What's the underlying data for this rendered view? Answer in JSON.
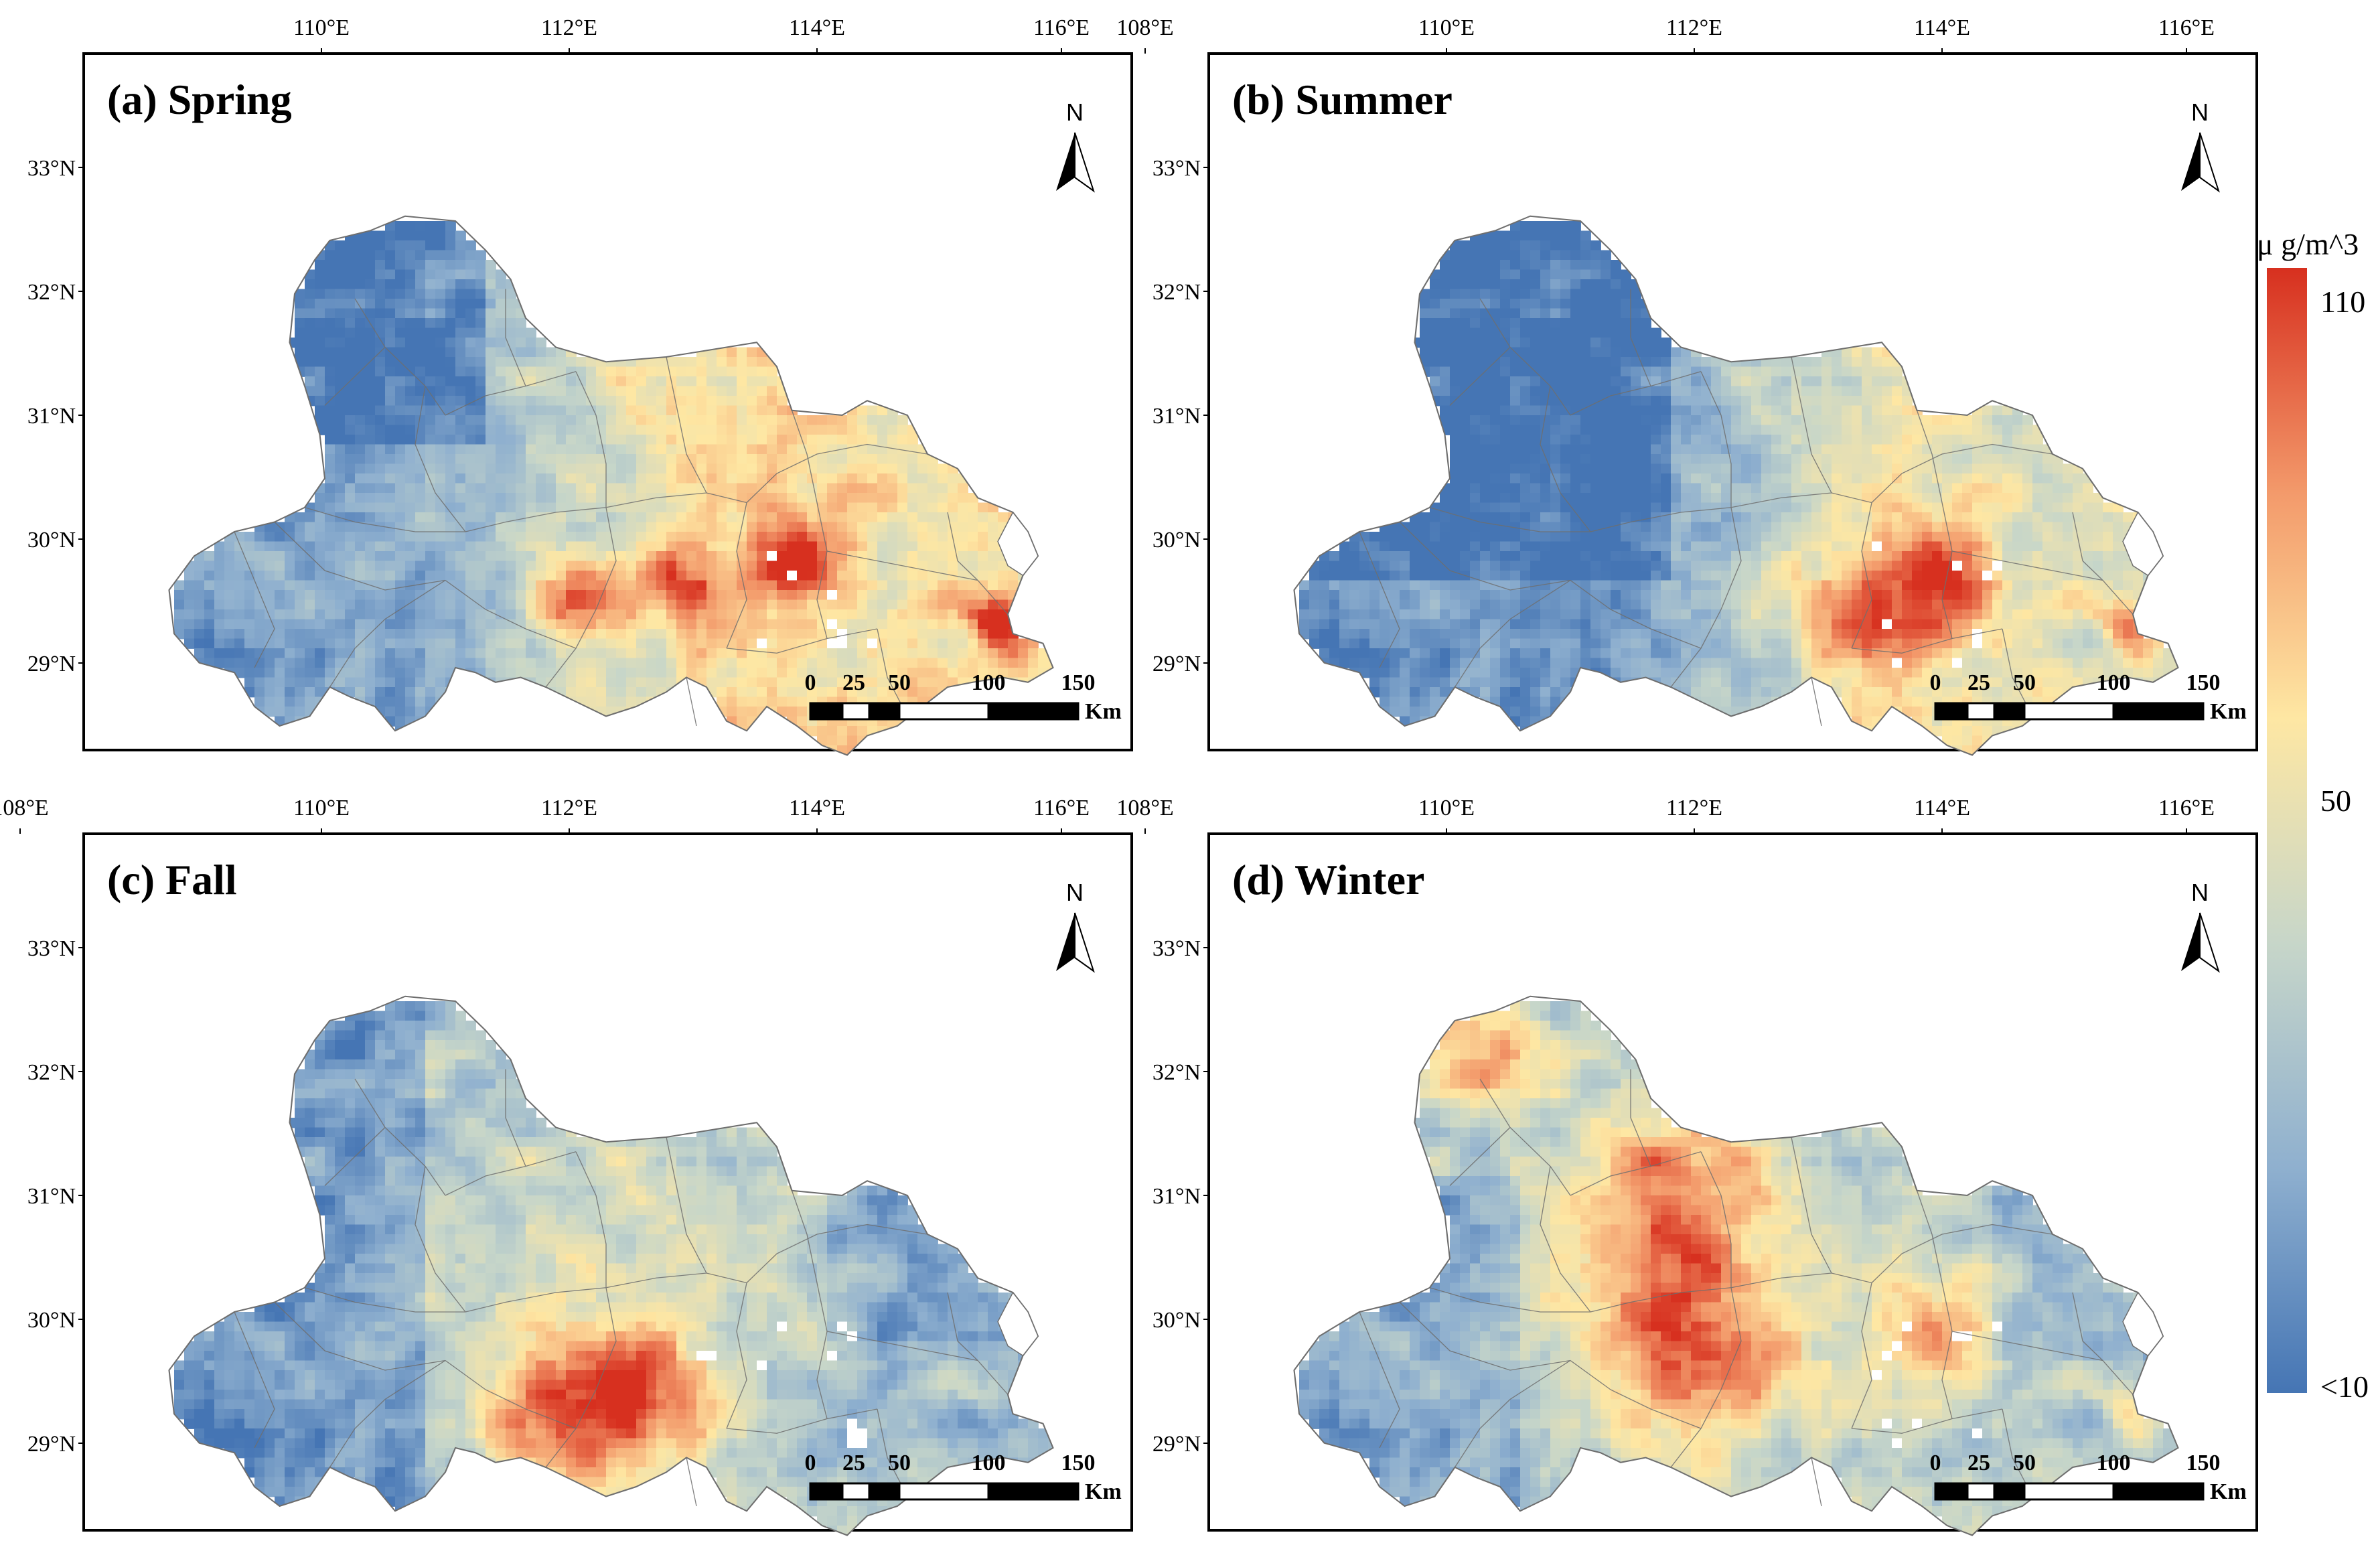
{
  "figure": {
    "panels": [
      {
        "id": "a",
        "title": "(a)  Spring",
        "pattern": "spring"
      },
      {
        "id": "b",
        "title": "(b)  Summer",
        "pattern": "summer"
      },
      {
        "id": "c",
        "title": "(c)  Fall",
        "pattern": "fall"
      },
      {
        "id": "d",
        "title": "(d)  Winter",
        "pattern": "winter"
      }
    ],
    "lon_ticks": [
      "108°E",
      "110°E",
      "112°E",
      "114°E",
      "116°E"
    ],
    "lat_ticks": [
      "33°N",
      "32°N",
      "31°N",
      "30°N",
      "29°N"
    ],
    "north_label": "N",
    "scale_bar": {
      "labels": [
        "0",
        "25",
        "50",
        "100",
        "150"
      ],
      "unit": "Km"
    },
    "colorbar": {
      "unit": "μ g/m^3",
      "labels": [
        "110",
        "50",
        "<10"
      ],
      "colors": [
        "#d7301f",
        "#f39a6b",
        "#fee7a3",
        "#c7d6c9",
        "#8fb0cf",
        "#4575b4"
      ]
    }
  }
}
